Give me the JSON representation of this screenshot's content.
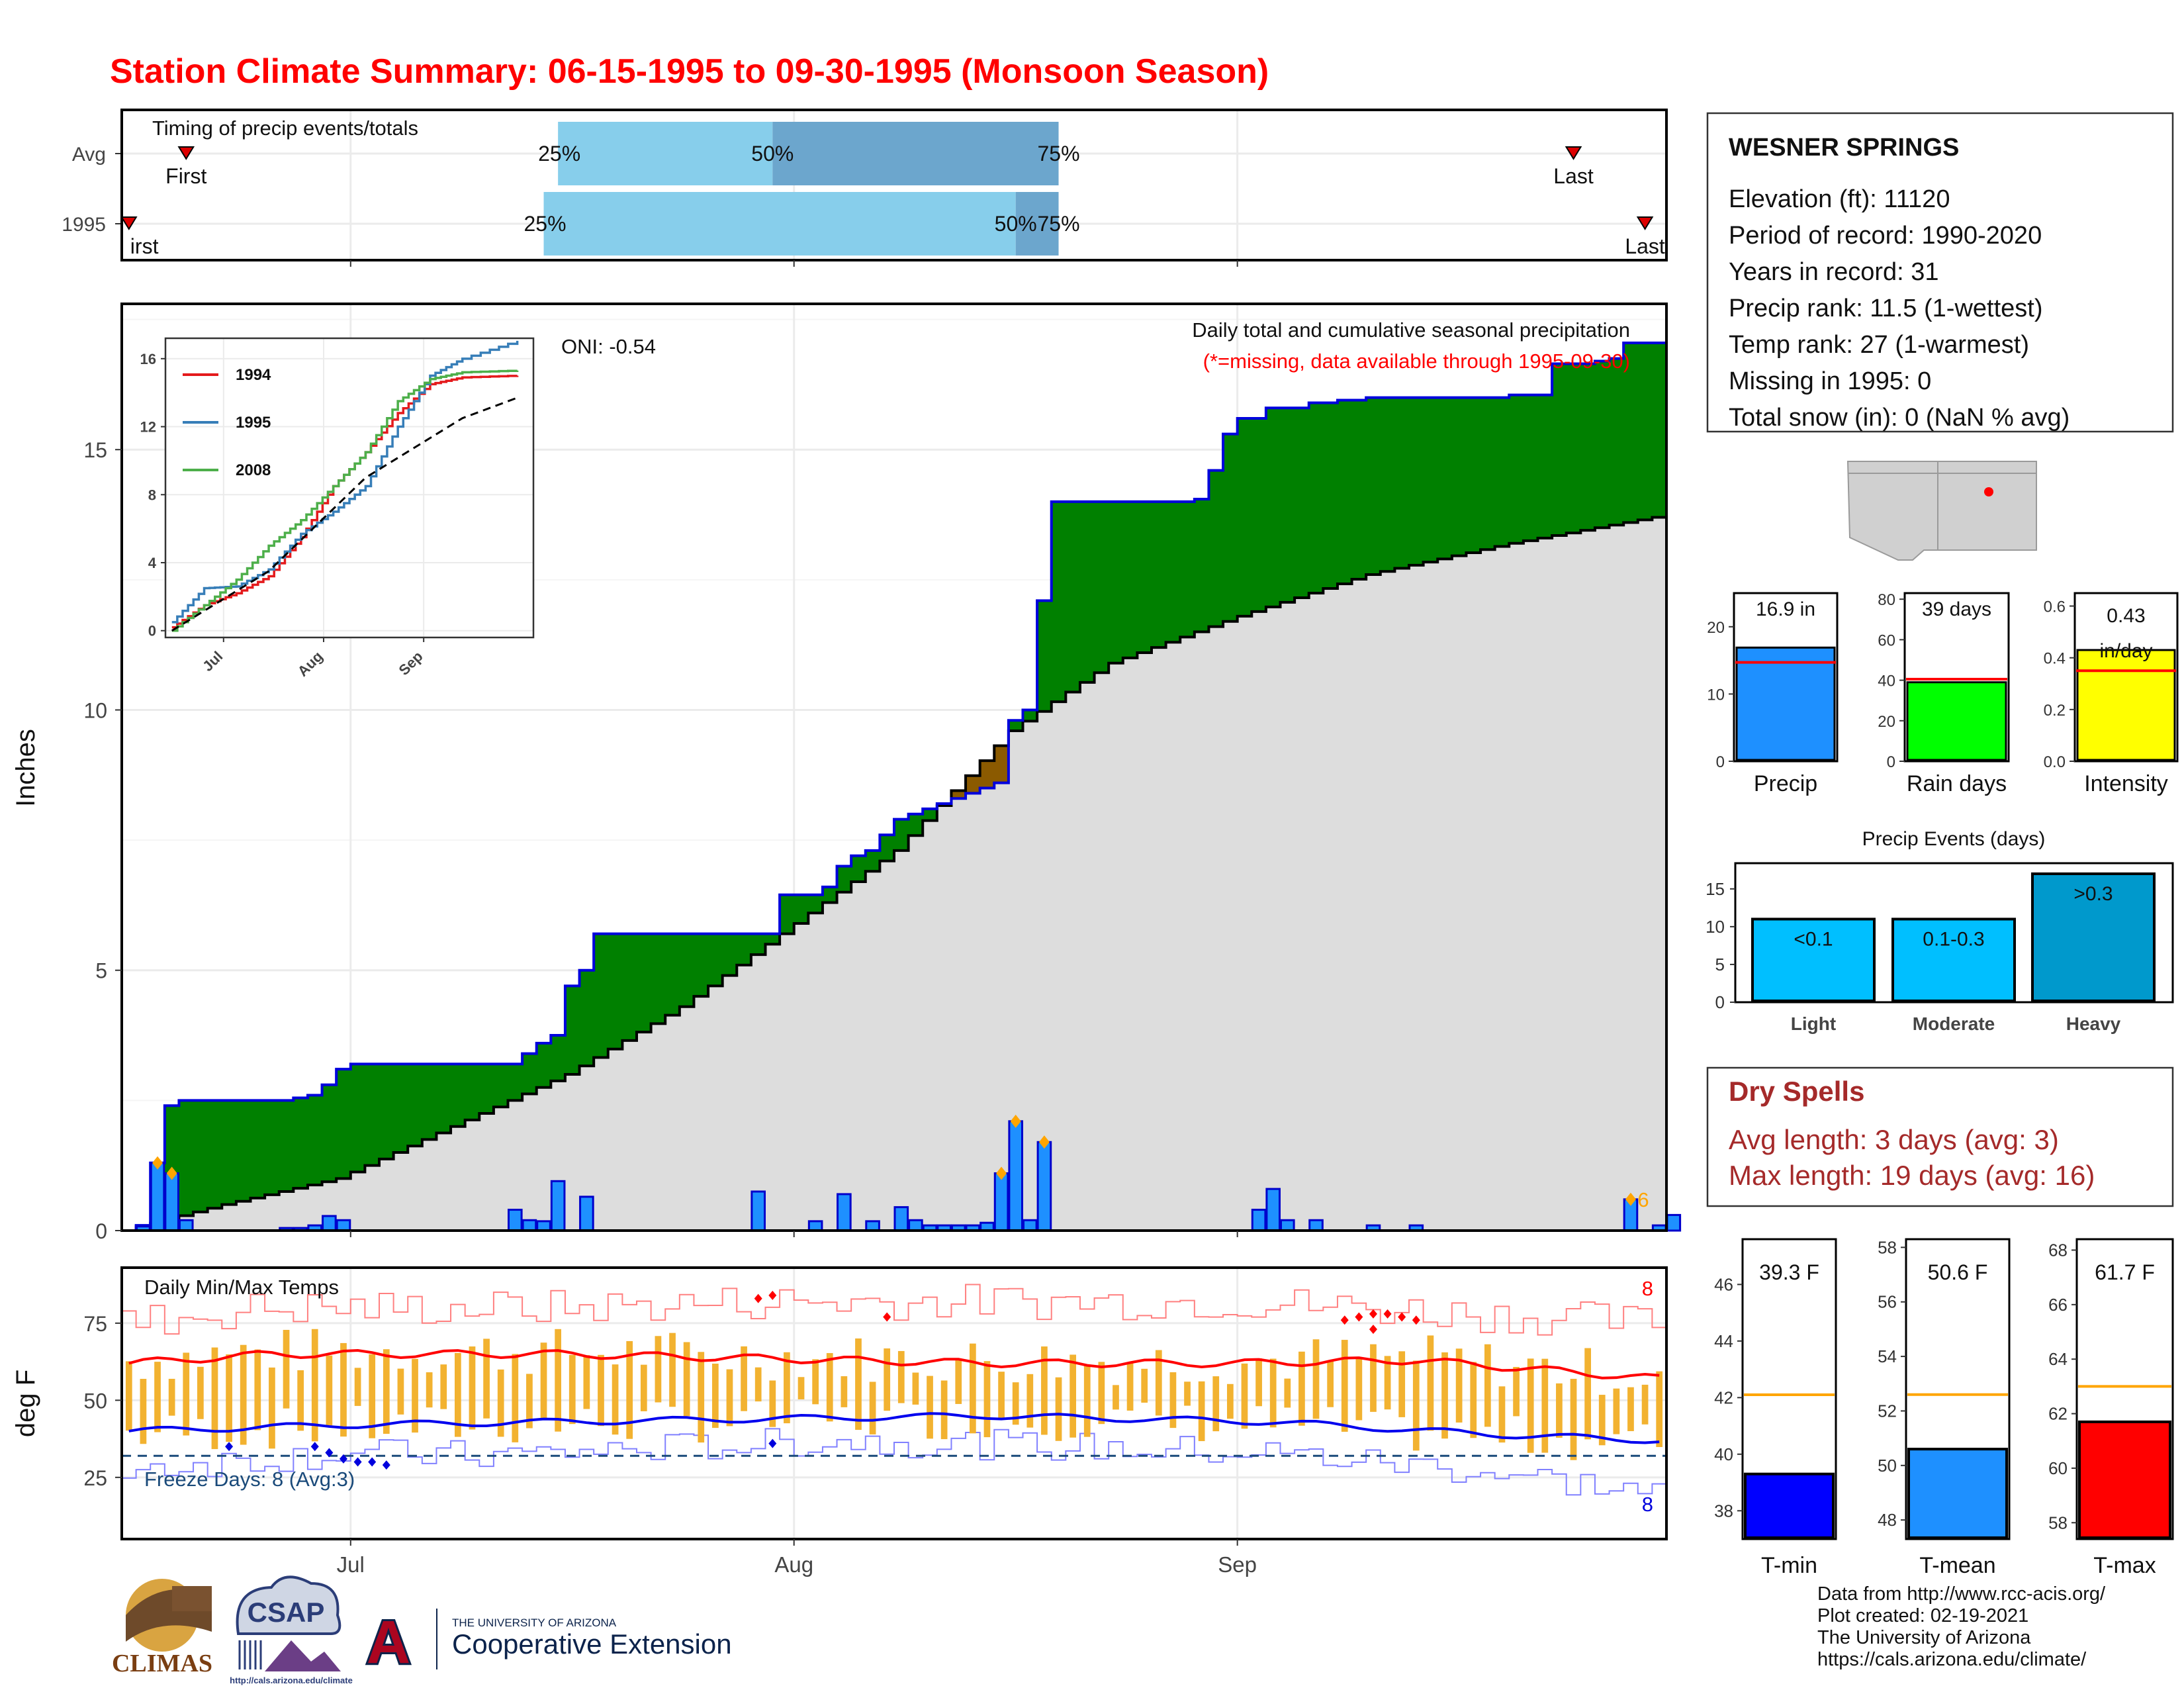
{
  "header": {
    "title": "Station Climate Summary: 06-15-1995 to 09-30-1995 (Monsoon Season)"
  },
  "timing": {
    "label": "Timing of precip events/totals",
    "rows": [
      "Avg",
      "1995"
    ],
    "first_label": "First",
    "first_label_clipped": "irst",
    "last_label": "Last",
    "pct": [
      "25%",
      "50%",
      "75%"
    ],
    "avg": {
      "first": "06-19",
      "last": "09-24",
      "p25": "07-15",
      "p50": "07-30",
      "p75": "08-19"
    },
    "y1995": {
      "first": "06-15",
      "last": "09-29",
      "p25": "07-14",
      "p50": "08-16",
      "p75": "08-19"
    }
  },
  "station": {
    "name": "WESNER SPRINGS",
    "lines": [
      "Elevation (ft): 11120",
      "Period of record: 1990-2020",
      "Years in record: 31",
      "Precip rank: 11.5 (1-wettest)",
      "Temp rank: 27 (1-warmest)",
      "Missing in 1995: 0",
      "Total snow (in): 0 (NaN % avg)"
    ]
  },
  "main": {
    "ylabel": "Inches",
    "yticks": [
      "0",
      "5",
      "10",
      "15"
    ],
    "xticks": [
      "Jul",
      "Aug",
      "Sep"
    ],
    "title": "Daily total and cumulative seasonal precipitation",
    "note": "(*=missing, data available through 1995-09-30)",
    "oni": "ONI: -0.54",
    "count_label": "6"
  },
  "inset": {
    "yticks": [
      "0",
      "4",
      "8",
      "12",
      "16"
    ],
    "xticks": [
      "Jul",
      "Aug",
      "Sep"
    ],
    "legend": [
      "1994",
      "1995",
      "2008"
    ]
  },
  "temps": {
    "label": "Daily Min/Max Temps",
    "ylabel": "deg F",
    "yticks": [
      "25",
      "50",
      "75"
    ],
    "freeze_label": "Freeze Days: 8 (Avg:3)",
    "max_count": "8",
    "min_count": "8"
  },
  "summary_bars": [
    {
      "label": "Precip",
      "value_text": "16.9 in",
      "value": 16.9,
      "avg": 14.7,
      "ymax": 25,
      "yticks": [
        "0",
        "10",
        "20"
      ],
      "color": "#1E90FF"
    },
    {
      "label": "Rain days",
      "value_text": "39 days",
      "value": 39,
      "avg": 40.5,
      "ymax": 83,
      "yticks": [
        "0",
        "20",
        "40",
        "60",
        "80"
      ],
      "color": "#00FF00"
    },
    {
      "label": "Intensity",
      "value_text": "0.43 in/day",
      "value": 0.43,
      "avg": 0.35,
      "ymax": 0.65,
      "yticks": [
        "0.0",
        "0.2",
        "0.4",
        "0.6"
      ],
      "color": "#FFFF00"
    }
  ],
  "events": {
    "title": "Precip Events (days)",
    "yticks": [
      "0",
      "5",
      "10",
      "15"
    ],
    "categories": [
      "Light",
      "Moderate",
      "Heavy"
    ],
    "bar_labels": [
      "<0.1",
      "0.1-0.3",
      ">0.3"
    ],
    "values": [
      11,
      11,
      17
    ],
    "colors": [
      "#00BFFF",
      "#00BFFF",
      "#0099CC"
    ]
  },
  "dry_spells": {
    "title": "Dry Spells",
    "avg_line": "Avg length: 3 days (avg: 3)",
    "max_line": "Max length: 19 days (avg: 16)"
  },
  "temp_bars": [
    {
      "label": "T-min",
      "value_text": "39.3 F",
      "value": 39.3,
      "avg": 42.1,
      "ymin": 37.0,
      "ymax": 47.6,
      "yticks": [
        "38",
        "40",
        "42",
        "44",
        "46"
      ],
      "color": "#0000FF"
    },
    {
      "label": "T-mean",
      "value_text": "50.6 F",
      "value": 50.6,
      "avg": 52.6,
      "ymin": 47.3,
      "ymax": 58.3,
      "yticks": [
        "48",
        "50",
        "52",
        "54",
        "56",
        "58"
      ],
      "color": "#1E90FF"
    },
    {
      "label": "T-max",
      "value_text": "61.7 F",
      "value": 61.7,
      "avg": 63.0,
      "ymin": 57.4,
      "ymax": 68.4,
      "yticks": [
        "58",
        "60",
        "62",
        "64",
        "66",
        "68"
      ],
      "color": "#FF0000"
    }
  ],
  "footer": {
    "lines": [
      "Data from http://www.rcc-acis.org/",
      "Plot created: 02-19-2021",
      "The University of Arizona",
      "https://cals.arizona.edu/climate/"
    ],
    "logo_climas": "CLIMAS",
    "logo_csap": "CSAP",
    "logo_csap_url": "http://cals.arizona.edu/climate",
    "logo_ua_top": "THE UNIVERSITY OF ARIZONA",
    "logo_ua_bottom": "Cooperative Extension",
    "logo_ua_letter": "A"
  },
  "colors": {
    "title_red": "#FF0000",
    "green_fill": "#008000",
    "brown_fill": "#8B5A00",
    "gray_fill": "#DDDDDD",
    "daily_bar": "#1E90FF",
    "dry_spells": "#A52A2A"
  },
  "chart_data": [
    {
      "type": "area",
      "title": "Daily total and cumulative seasonal precipitation",
      "ylabel": "Inches",
      "xlim": [
        "06-15",
        "09-30"
      ],
      "ylim": [
        0,
        17.8
      ],
      "series": [
        {
          "name": "1995",
          "kind": "cumulative",
          "points": [
            [
              "06-15",
              0
            ],
            [
              "06-16",
              0.1
            ],
            [
              "06-17",
              1.3
            ],
            [
              "06-18",
              2.4
            ],
            [
              "06-19",
              2.5
            ],
            [
              "06-27",
              2.55
            ],
            [
              "06-28",
              2.6
            ],
            [
              "06-29",
              2.8
            ],
            [
              "06-30",
              3.1
            ],
            [
              "07-01",
              3.2
            ],
            [
              "07-13",
              3.4
            ],
            [
              "07-14",
              3.6
            ],
            [
              "07-15",
              3.75
            ],
            [
              "07-16",
              4.7
            ],
            [
              "07-17",
              5.0
            ],
            [
              "07-18",
              5.7
            ],
            [
              "07-28",
              5.7
            ],
            [
              "07-30",
              5.7
            ],
            [
              "07-31",
              6.45
            ],
            [
              "08-02",
              6.45
            ],
            [
              "08-03",
              6.6
            ],
            [
              "08-04",
              7.0
            ],
            [
              "08-05",
              7.2
            ],
            [
              "08-06",
              7.3
            ],
            [
              "08-07",
              7.6
            ],
            [
              "08-08",
              7.9
            ],
            [
              "08-09",
              8.0
            ],
            [
              "08-10",
              8.1
            ],
            [
              "08-11",
              8.2
            ],
            [
              "08-12",
              8.3
            ],
            [
              "08-13",
              8.4
            ],
            [
              "08-14",
              8.5
            ],
            [
              "08-15",
              8.6
            ],
            [
              "08-16",
              9.8
            ],
            [
              "08-17",
              10.0
            ],
            [
              "08-18",
              12.1
            ],
            [
              "08-19",
              14.0
            ],
            [
              "08-29",
              14.05
            ],
            [
              "08-30",
              14.6
            ],
            [
              "08-31",
              15.3
            ],
            [
              "09-01",
              15.6
            ],
            [
              "09-03",
              15.8
            ],
            [
              "09-06",
              15.9
            ],
            [
              "09-08",
              15.95
            ],
            [
              "09-10",
              16.0
            ],
            [
              "09-20",
              16.05
            ],
            [
              "09-23",
              16.65
            ],
            [
              "09-26",
              16.7
            ],
            [
              "09-27",
              16.75
            ],
            [
              "09-28",
              17.05
            ],
            [
              "09-30",
              17.05
            ]
          ]
        },
        {
          "name": "avg",
          "kind": "cumulative",
          "points": [
            [
              "06-15",
              0
            ],
            [
              "06-22",
              0.5
            ],
            [
              "06-30",
              1.0
            ],
            [
              "07-08",
              2.0
            ],
            [
              "07-16",
              3.0
            ],
            [
              "07-24",
              4.3
            ],
            [
              "08-01",
              5.9
            ],
            [
              "08-08",
              7.3
            ],
            [
              "08-16",
              9.6
            ],
            [
              "08-23",
              10.9
            ],
            [
              "09-01",
              11.8
            ],
            [
              "09-10",
              12.6
            ],
            [
              "09-20",
              13.2
            ],
            [
              "09-30",
              13.7
            ]
          ]
        }
      ],
      "daily_bars": [
        [
          "06-16",
          0.08
        ],
        [
          "06-17",
          1.3
        ],
        [
          "06-18",
          1.1
        ],
        [
          "06-19",
          0.2
        ],
        [
          "06-26",
          0.05
        ],
        [
          "06-27",
          0.05
        ],
        [
          "06-28",
          0.1
        ],
        [
          "06-29",
          0.28
        ],
        [
          "06-30",
          0.2
        ],
        [
          "07-12",
          0.4
        ],
        [
          "07-13",
          0.2
        ],
        [
          "07-14",
          0.18
        ],
        [
          "07-15",
          0.95
        ],
        [
          "07-17",
          0.65
        ],
        [
          "07-29",
          0.75
        ],
        [
          "08-02",
          0.18
        ],
        [
          "08-04",
          0.7
        ],
        [
          "08-06",
          0.18
        ],
        [
          "08-08",
          0.45
        ],
        [
          "08-09",
          0.2
        ],
        [
          "08-10",
          0.1
        ],
        [
          "08-11",
          0.1
        ],
        [
          "08-12",
          0.1
        ],
        [
          "08-13",
          0.1
        ],
        [
          "08-14",
          0.15
        ],
        [
          "08-15",
          1.1
        ],
        [
          "08-16",
          2.1
        ],
        [
          "08-17",
          0.2
        ],
        [
          "08-18",
          1.7
        ],
        [
          "09-02",
          0.4
        ],
        [
          "09-03",
          0.8
        ],
        [
          "09-04",
          0.2
        ],
        [
          "09-06",
          0.2
        ],
        [
          "09-10",
          0.1
        ],
        [
          "09-13",
          0.1
        ],
        [
          "09-28",
          0.6
        ],
        [
          "09-30",
          0.1
        ],
        [
          "10-01",
          0.3
        ]
      ]
    },
    {
      "type": "line",
      "title": "",
      "yticks": [
        "0",
        "4",
        "8",
        "12",
        "16"
      ],
      "series": [
        {
          "name": "1994",
          "points": [
            [
              0,
              0.2
            ],
            [
              10,
              1.5
            ],
            [
              20,
              2.2
            ],
            [
              30,
              3.2
            ],
            [
              40,
              5.5
            ],
            [
              50,
              8.5
            ],
            [
              60,
              10.5
            ],
            [
              70,
              12.8
            ],
            [
              80,
              14.5
            ],
            [
              90,
              14.9
            ],
            [
              107,
              15.0
            ]
          ]
        },
        {
          "name": "1995",
          "points": [
            [
              0,
              0.5
            ],
            [
              10,
              2.5
            ],
            [
              20,
              2.6
            ],
            [
              30,
              3.6
            ],
            [
              40,
              5.7
            ],
            [
              50,
              7.0
            ],
            [
              60,
              8.5
            ],
            [
              70,
              12.0
            ],
            [
              80,
              15.0
            ],
            [
              90,
              16.0
            ],
            [
              107,
              17.05
            ]
          ]
        },
        {
          "name": "2008",
          "points": [
            [
              0,
              0.0
            ],
            [
              10,
              1.5
            ],
            [
              20,
              3.0
            ],
            [
              30,
              5.0
            ],
            [
              40,
              6.5
            ],
            [
              50,
              8.5
            ],
            [
              60,
              10.5
            ],
            [
              70,
              13.5
            ],
            [
              80,
              14.8
            ],
            [
              90,
              15.2
            ],
            [
              107,
              15.3
            ]
          ]
        },
        {
          "name": "avg",
          "points": [
            [
              0,
              0
            ],
            [
              30,
              3.5
            ],
            [
              60,
              9
            ],
            [
              90,
              12.5
            ],
            [
              107,
              13.7
            ]
          ]
        }
      ]
    },
    {
      "type": "line",
      "title": "Daily Min/Max Temps",
      "ylabel": "deg F",
      "ylim": [
        5,
        93
      ],
      "series": [
        {
          "name": "avg max",
          "points": [
            [
              0,
              62
            ],
            [
              10,
              65
            ],
            [
              30,
              65
            ],
            [
              60,
              62
            ],
            [
              77,
              62
            ],
            [
              90,
              63
            ],
            [
              107,
              57
            ]
          ]
        },
        {
          "name": "avg min",
          "points": [
            [
              0,
              40
            ],
            [
              15,
              42
            ],
            [
              60,
              45
            ],
            [
              80,
              43
            ],
            [
              95,
              39
            ],
            [
              107,
              37
            ]
          ]
        },
        {
          "name": "record max",
          "points": [
            [
              0,
              75
            ],
            [
              10,
              80
            ],
            [
              30,
              80
            ],
            [
              45,
              82
            ],
            [
              60,
              82
            ],
            [
              78,
              82
            ],
            [
              95,
              78
            ],
            [
              107,
              75
            ]
          ]
        },
        {
          "name": "record min",
          "points": [
            [
              0,
              28
            ],
            [
              15,
              33
            ],
            [
              25,
              32
            ],
            [
              50,
              37
            ],
            [
              80,
              33
            ],
            [
              95,
              27
            ],
            [
              107,
              20
            ]
          ]
        }
      ],
      "freeze_line": 32
    },
    {
      "type": "bar",
      "categories": [
        "Precip",
        "Rain days",
        "Intensity"
      ],
      "values": [
        16.9,
        39,
        0.43
      ]
    },
    {
      "type": "bar",
      "title": "Precip Events (days)",
      "categories": [
        "Light",
        "Moderate",
        "Heavy"
      ],
      "values": [
        11,
        11,
        17
      ]
    },
    {
      "type": "bar",
      "categories": [
        "T-min",
        "T-mean",
        "T-max"
      ],
      "values": [
        39.3,
        50.6,
        61.7
      ]
    }
  ]
}
